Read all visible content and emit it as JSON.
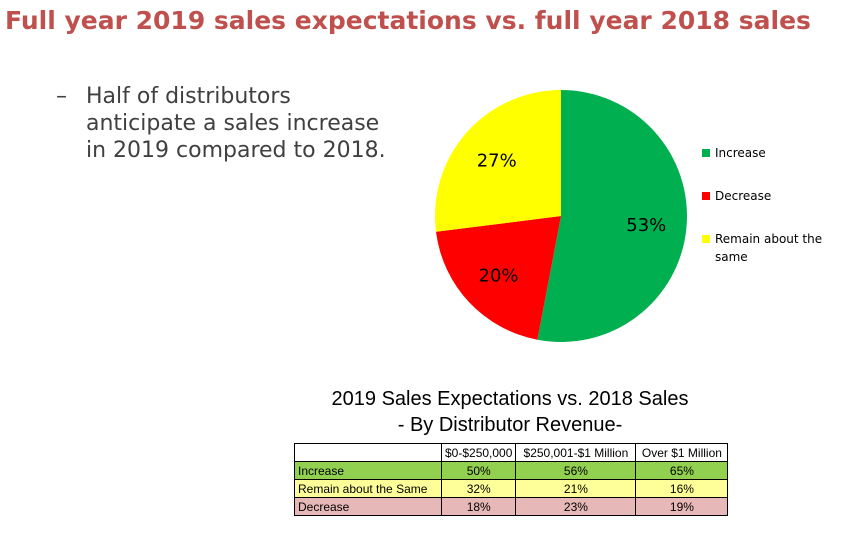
{
  "title": "Full year 2019 sales expectations vs. full year 2018 sales",
  "bullet": {
    "dash": "–",
    "text": "Half of distributors anticipate a sales increase in 2019 compared to 2018."
  },
  "chart_data": [
    {
      "type": "pie",
      "slices": [
        {
          "label": "Increase",
          "value": 53,
          "display": "53%",
          "color": "#00b050"
        },
        {
          "label": "Decrease",
          "value": 20,
          "display": "20%",
          "color": "#ff0000"
        },
        {
          "label": "Remain about the same",
          "value": 27,
          "display": "27%",
          "color": "#ffff00"
        }
      ],
      "legend_position": "right"
    },
    {
      "type": "table",
      "title": "2019 Sales Expectations vs. 2018 Sales",
      "subtitle": "- By Distributor Revenue-",
      "columns": [
        "",
        "$0-$250,000",
        "$250,001-$1 Million",
        "Over $1 Million"
      ],
      "rows": [
        {
          "label": "Increase",
          "values": [
            "50%",
            "56%",
            "65%"
          ],
          "color": "#92d050"
        },
        {
          "label": "Remain about the Same",
          "values": [
            "32%",
            "21%",
            "16%"
          ],
          "color": "#ffff99"
        },
        {
          "label": "Decrease",
          "values": [
            "18%",
            "23%",
            "19%"
          ],
          "color": "#e6b8b7"
        }
      ]
    }
  ]
}
